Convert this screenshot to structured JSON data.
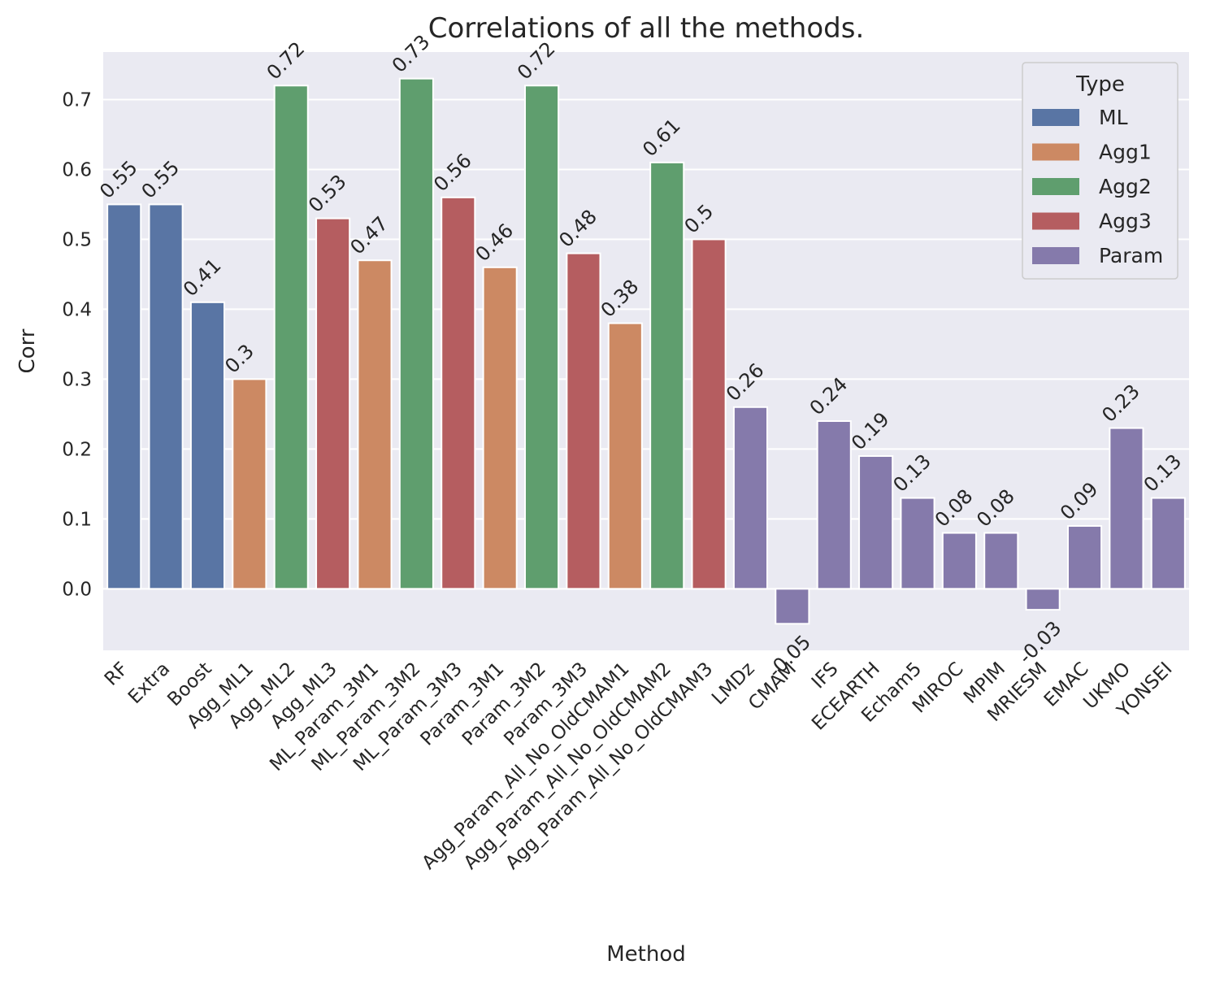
{
  "chart_data": {
    "type": "bar",
    "title": "Correlations of all the methods.",
    "xlabel": "Method",
    "ylabel": "Corr",
    "ylim": [
      -0.088,
      0.768
    ],
    "yticks": [
      0.0,
      0.1,
      0.2,
      0.3,
      0.4,
      0.5,
      0.6,
      0.7
    ],
    "ytick_labels": [
      "0.0",
      "0.1",
      "0.2",
      "0.3",
      "0.4",
      "0.5",
      "0.6",
      "0.7"
    ],
    "grid": true,
    "legend": {
      "title": "Type",
      "placement": "top-right",
      "entries": [
        {
          "name": "ML",
          "color": "#5975a4"
        },
        {
          "name": "Agg1",
          "color": "#cc8963"
        },
        {
          "name": "Agg2",
          "color": "#5f9e6e"
        },
        {
          "name": "Agg3",
          "color": "#b55d60"
        },
        {
          "name": "Param",
          "color": "#857aab"
        }
      ]
    },
    "categories": [
      "RF",
      "Extra",
      "Boost",
      "Agg_ML1",
      "Agg_ML2",
      "Agg_ML3",
      "ML_Param_3M1",
      "ML_Param_3M2",
      "ML_Param_3M3",
      "Param_3M1",
      "Param_3M2",
      "Param_3M3",
      "Agg_Param_All_No_OldCMAM1",
      "Agg_Param_All_No_OldCMAM2",
      "Agg_Param_All_No_OldCMAM3",
      "LMDz",
      "CMAM",
      "IFS",
      "ECEARTH",
      "Echam5",
      "MIROC",
      "MPIM",
      "MRIESM",
      "EMAC",
      "UKMO",
      "YONSEI"
    ],
    "values": [
      0.55,
      0.55,
      0.41,
      0.3,
      0.72,
      0.53,
      0.47,
      0.73,
      0.56,
      0.46,
      0.72,
      0.48,
      0.38,
      0.61,
      0.5,
      0.26,
      -0.05,
      0.24,
      0.19,
      0.13,
      0.08,
      0.08,
      -0.03,
      0.09,
      0.23,
      0.13
    ],
    "value_labels": [
      "0.55",
      "0.55",
      "0.41",
      "0.3",
      "0.72",
      "0.53",
      "0.47",
      "0.73",
      "0.56",
      "0.46",
      "0.72",
      "0.48",
      "0.38",
      "0.61",
      "0.5",
      "0.26",
      "-0.05",
      "0.24",
      "0.19",
      "0.13",
      "0.08",
      "0.08",
      "-0.03",
      "0.09",
      "0.23",
      "0.13"
    ],
    "types": [
      "ML",
      "ML",
      "ML",
      "Agg1",
      "Agg2",
      "Agg3",
      "Agg1",
      "Agg2",
      "Agg3",
      "Agg1",
      "Agg2",
      "Agg3",
      "Agg1",
      "Agg2",
      "Agg3",
      "Param",
      "Param",
      "Param",
      "Param",
      "Param",
      "Param",
      "Param",
      "Param",
      "Param",
      "Param",
      "Param"
    ]
  },
  "colors": {
    "plot_background": "#eaeaf2",
    "grid": "#ffffff",
    "text": "#262626"
  }
}
